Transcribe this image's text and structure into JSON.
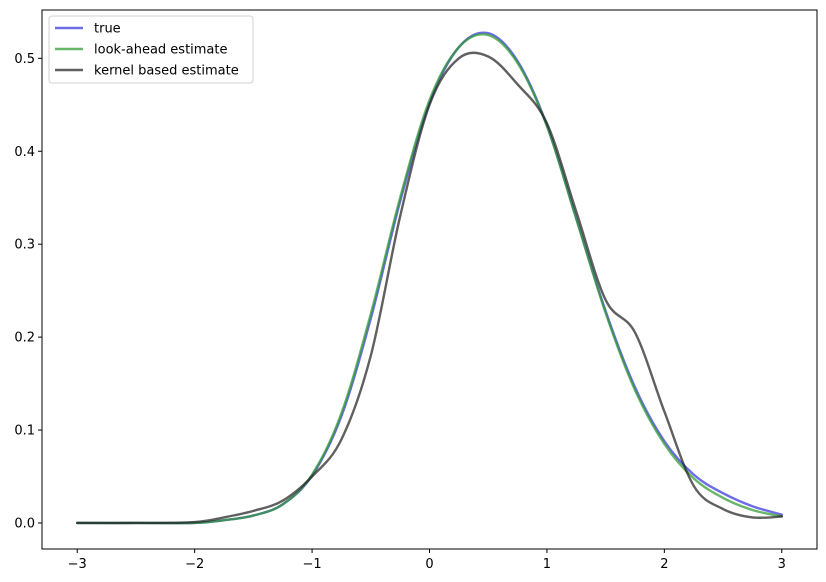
{
  "chart_data": {
    "type": "line",
    "xlim": [
      -3.3,
      3.3
    ],
    "ylim": [
      -0.028,
      0.552
    ],
    "x_ticks": [
      -3,
      -2,
      -1,
      0,
      1,
      2,
      3
    ],
    "x_tick_labels": [
      "−3",
      "−2",
      "−1",
      "0",
      "1",
      "2",
      "3"
    ],
    "y_ticks": [
      0.0,
      0.1,
      0.2,
      0.3,
      0.4,
      0.5
    ],
    "y_tick_labels": [
      "0.0",
      "0.1",
      "0.2",
      "0.3",
      "0.4",
      "0.5"
    ],
    "grid": false,
    "legend_position": "top-left",
    "x": [
      -3.0,
      -2.5,
      -2.0,
      -1.75,
      -1.5,
      -1.25,
      -1.0,
      -0.75,
      -0.5,
      -0.25,
      0.0,
      0.25,
      0.5,
      0.75,
      1.0,
      1.25,
      1.5,
      1.75,
      2.0,
      2.25,
      2.5,
      2.75,
      3.0
    ],
    "series": [
      {
        "name": "true",
        "color": "#3333dd",
        "values": [
          0.0,
          0.0,
          0.0,
          0.003,
          0.008,
          0.02,
          0.051,
          0.115,
          0.22,
          0.346,
          0.452,
          0.512,
          0.527,
          0.497,
          0.428,
          0.328,
          0.228,
          0.146,
          0.088,
          0.052,
          0.032,
          0.018,
          0.009
        ]
      },
      {
        "name": "look-ahead estimate",
        "color": "#2e9a2e",
        "values": [
          0.0,
          0.0,
          0.0,
          0.003,
          0.008,
          0.02,
          0.052,
          0.118,
          0.225,
          0.35,
          0.455,
          0.512,
          0.525,
          0.495,
          0.427,
          0.327,
          0.226,
          0.143,
          0.085,
          0.048,
          0.027,
          0.014,
          0.007
        ]
      },
      {
        "name": "kernel based estimate",
        "color": "#222222",
        "values": [
          0.0,
          0.0,
          0.001,
          0.006,
          0.013,
          0.024,
          0.05,
          0.09,
          0.18,
          0.33,
          0.45,
          0.5,
          0.502,
          0.472,
          0.43,
          0.335,
          0.24,
          0.205,
          0.12,
          0.04,
          0.015,
          0.006,
          0.007
        ]
      }
    ]
  }
}
